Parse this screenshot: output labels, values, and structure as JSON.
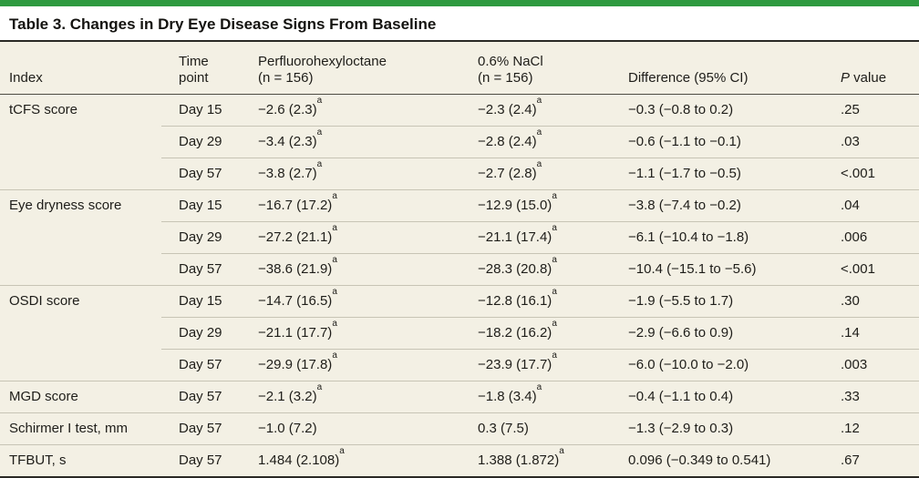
{
  "colors": {
    "accent_green": "#2e9a40",
    "table_background": "#f3f0e4",
    "dark_rule": "#2a2925",
    "header_rule": "#4e4c43",
    "row_rule": "#c7c4b5",
    "text": "#1e1d19"
  },
  "table": {
    "title": "Table 3. Changes in Dry Eye Disease Signs From Baseline",
    "headers": {
      "index": "Index",
      "time_point": "Time\npoint",
      "perfluorohexyloctane": "Perfluorohexyloctane\n(n = 156)",
      "nacl": "0.6% NaCl\n(n = 156)",
      "difference": "Difference (95% CI)",
      "p_italic": "P",
      "p_rest": " value"
    },
    "rows": [
      {
        "index": "tCFS score",
        "time": "Day 15",
        "pfho": "−2.6 (2.3)",
        "pfho_sup": "a",
        "nacl": "−2.3 (2.4)",
        "nacl_sup": "a",
        "diff": "−0.3 (−0.8 to 0.2)",
        "p": ".25",
        "group_start": true
      },
      {
        "index": "",
        "time": "Day 29",
        "pfho": "−3.4 (2.3)",
        "pfho_sup": "a",
        "nacl": "−2.8 (2.4)",
        "nacl_sup": "a",
        "diff": "−0.6 (−1.1 to −0.1)",
        "p": ".03",
        "group_start": false
      },
      {
        "index": "",
        "time": "Day 57",
        "pfho": "−3.8 (2.7)",
        "pfho_sup": "a",
        "nacl": "−2.7 (2.8)",
        "nacl_sup": "a",
        "diff": "−1.1 (−1.7 to −0.5)",
        "p": "<.001",
        "group_start": false
      },
      {
        "index": "Eye dryness score",
        "time": "Day 15",
        "pfho": "−16.7 (17.2)",
        "pfho_sup": "a",
        "nacl": "−12.9 (15.0)",
        "nacl_sup": "a",
        "diff": "−3.8 (−7.4 to −0.2)",
        "p": ".04",
        "group_start": true
      },
      {
        "index": "",
        "time": "Day 29",
        "pfho": "−27.2 (21.1)",
        "pfho_sup": "a",
        "nacl": "−21.1 (17.4)",
        "nacl_sup": "a",
        "diff": "−6.1 (−10.4 to −1.8)",
        "p": ".006",
        "group_start": false
      },
      {
        "index": "",
        "time": "Day 57",
        "pfho": "−38.6 (21.9)",
        "pfho_sup": "a",
        "nacl": "−28.3 (20.8)",
        "nacl_sup": "a",
        "diff": "−10.4 (−15.1 to −5.6)",
        "p": "<.001",
        "group_start": false
      },
      {
        "index": "OSDI score",
        "time": "Day 15",
        "pfho": "−14.7 (16.5)",
        "pfho_sup": "a",
        "nacl": "−12.8 (16.1)",
        "nacl_sup": "a",
        "diff": "−1.9 (−5.5 to 1.7)",
        "p": ".30",
        "group_start": true
      },
      {
        "index": "",
        "time": "Day 29",
        "pfho": "−21.1 (17.7)",
        "pfho_sup": "a",
        "nacl": "−18.2 (16.2)",
        "nacl_sup": "a",
        "diff": "−2.9 (−6.6 to 0.9)",
        "p": ".14",
        "group_start": false
      },
      {
        "index": "",
        "time": "Day 57",
        "pfho": "−29.9 (17.8)",
        "pfho_sup": "a",
        "nacl": "−23.9 (17.7)",
        "nacl_sup": "a",
        "diff": "−6.0 (−10.0 to −2.0)",
        "p": ".003",
        "group_start": false
      },
      {
        "index": "MGD score",
        "time": "Day 57",
        "pfho": "−2.1 (3.2)",
        "pfho_sup": "a",
        "nacl": "−1.8 (3.4)",
        "nacl_sup": "a",
        "diff": "−0.4 (−1.1 to 0.4)",
        "p": ".33",
        "group_start": true
      },
      {
        "index": "Schirmer I test, mm",
        "time": "Day 57",
        "pfho": "−1.0 (7.2)",
        "pfho_sup": "",
        "nacl": "0.3 (7.5)",
        "nacl_sup": "",
        "diff": "−1.3 (−2.9 to 0.3)",
        "p": ".12",
        "group_start": true
      },
      {
        "index": "TFBUT, s",
        "time": "Day 57",
        "pfho": "1.484 (2.108)",
        "pfho_sup": "a",
        "nacl": "1.388 (1.872)",
        "nacl_sup": "a",
        "diff": "0.096 (−0.349 to 0.541)",
        "p": ".67",
        "group_start": true
      }
    ]
  }
}
